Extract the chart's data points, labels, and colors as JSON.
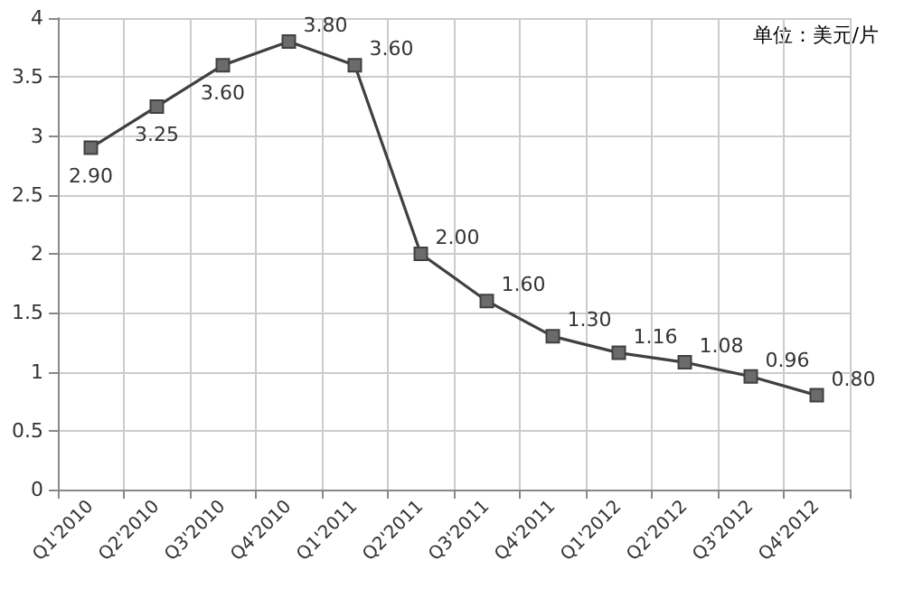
{
  "chart_data": {
    "type": "line",
    "annotations": [
      "单位：美元/片"
    ],
    "categories": [
      "Q1'2010",
      "Q2'2010",
      "Q3'2010",
      "Q4'2010",
      "Q1'2011",
      "Q2'2011",
      "Q3'2011",
      "Q4'2011",
      "Q1'2012",
      "Q2'2012",
      "Q3'2012",
      "Q4'2012"
    ],
    "series": [
      {
        "color": "#404040",
        "values": [
          2.9,
          3.25,
          3.6,
          3.8,
          3.6,
          2.0,
          1.6,
          1.3,
          1.16,
          1.08,
          0.96,
          0.8
        ],
        "value_labels": [
          "2.90",
          "3.25",
          "3.60",
          "3.80",
          "3.60",
          "2.00",
          "1.60",
          "1.30",
          "1.16",
          "1.08",
          "0.96",
          "0.80"
        ]
      }
    ],
    "ylim": [
      0,
      4
    ],
    "yticks": [
      0,
      0.5,
      1,
      1.5,
      2,
      2.5,
      3,
      3.5,
      4
    ],
    "grid": true,
    "marker": "square",
    "line_style": "solid"
  }
}
